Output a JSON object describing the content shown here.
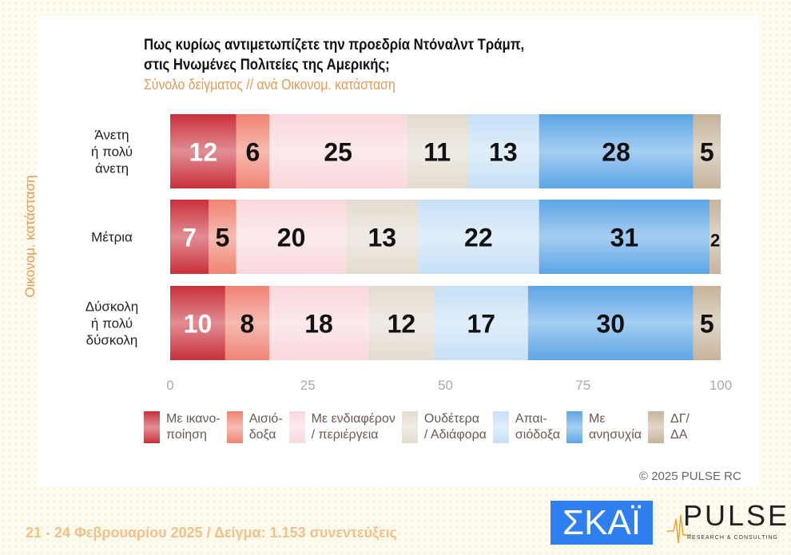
{
  "chart_data": {
    "type": "bar",
    "orientation": "horizontal-stacked",
    "title": "Πως κυρίως αντιμετωπίζετε την προεδρία Ντόναλντ Τράμπ,\nστις Ηνωμένες Πολιτείες της Αμερικής;",
    "subtitle": "Σύνολο δείγματος // ανά Οικονομ. κατάσταση",
    "ylabel": "Οικονομ. κατάσταση",
    "xlim": [
      0,
      100
    ],
    "xticks": [
      "0",
      "25",
      "50",
      "75",
      "100"
    ],
    "categories": [
      "Άνετη\nή πολύ\nάνετη",
      "Μέτρια",
      "Δύσκολη\nή πολύ\nδύσκολη"
    ],
    "legend_position": "bottom",
    "series": [
      {
        "name": "Με ικανο-\nποίηση",
        "color": "#c9303a",
        "values": [
          12,
          7,
          10
        ]
      },
      {
        "name": "Αισιό-\nδοξα",
        "color": "#f08372",
        "values": [
          6,
          5,
          8
        ]
      },
      {
        "name": "Με ενδιαφέρον\n/ περιέργεια",
        "color": "#f9d8dc",
        "values": [
          25,
          20,
          18
        ]
      },
      {
        "name": "Ουδέτερα\n/ Αδιάφορα",
        "color": "#e3dbcf",
        "values": [
          11,
          13,
          12
        ]
      },
      {
        "name": "Απαι-\nσιόδοξα",
        "color": "#c6e0f6",
        "values": [
          13,
          22,
          17
        ]
      },
      {
        "name": "Με\nανησυχία",
        "color": "#5ca5e6",
        "values": [
          28,
          31,
          30
        ]
      },
      {
        "name": "ΔΓ/\nΔΑ",
        "color": "#c6b39a",
        "values": [
          5,
          2,
          5
        ]
      }
    ]
  },
  "copyright": "©  2025  PULSE RC",
  "footer": "21 - 24 Φεβρουαρίου 2025  /  Δείγμα:  1.153 συνεντεύξεις",
  "logos": {
    "skai": "ΣΚΑΪ",
    "pulse": "PULSE",
    "pulse_sub": "RESEARCH & CONSULTING"
  }
}
